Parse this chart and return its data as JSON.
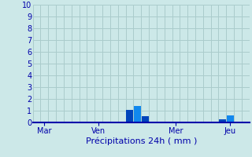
{
  "title": "",
  "xlabel": "Précipitations 24h ( mm )",
  "background_color": "#cce8e8",
  "grid_color": "#aacccc",
  "ylim": [
    0,
    10
  ],
  "yticks": [
    0,
    1,
    2,
    3,
    4,
    5,
    6,
    7,
    8,
    9,
    10
  ],
  "num_bars": 28,
  "day_labels": [
    "Mar",
    "Ven",
    "Mer",
    "Jeu"
  ],
  "day_positions": [
    1,
    8,
    18,
    25
  ],
  "bar_values": [
    0,
    0,
    0,
    0,
    0,
    0,
    0,
    0,
    0,
    0,
    0,
    0,
    1.1,
    1.4,
    0.55,
    0,
    0,
    0,
    0,
    0,
    0,
    0,
    0,
    0,
    0.25,
    0.6,
    0,
    0
  ],
  "bar_colors_individual": [
    "#0044bb",
    "#0044bb",
    "#0044bb",
    "#0044bb",
    "#0044bb",
    "#0044bb",
    "#0044bb",
    "#0044bb",
    "#0044bb",
    "#0044bb",
    "#0044bb",
    "#0044bb",
    "#0044bb",
    "#1188ee",
    "#0044bb",
    "#0044bb",
    "#0044bb",
    "#0044bb",
    "#0044bb",
    "#0044bb",
    "#0044bb",
    "#0044bb",
    "#0044bb",
    "#0044bb",
    "#0044bb",
    "#1188ee",
    "#0044bb",
    "#0044bb"
  ],
  "spine_color": "#0000aa",
  "tick_color": "#0000aa",
  "label_color": "#0000aa",
  "xlabel_fontsize": 8,
  "ytick_fontsize": 7,
  "xtick_fontsize": 7
}
